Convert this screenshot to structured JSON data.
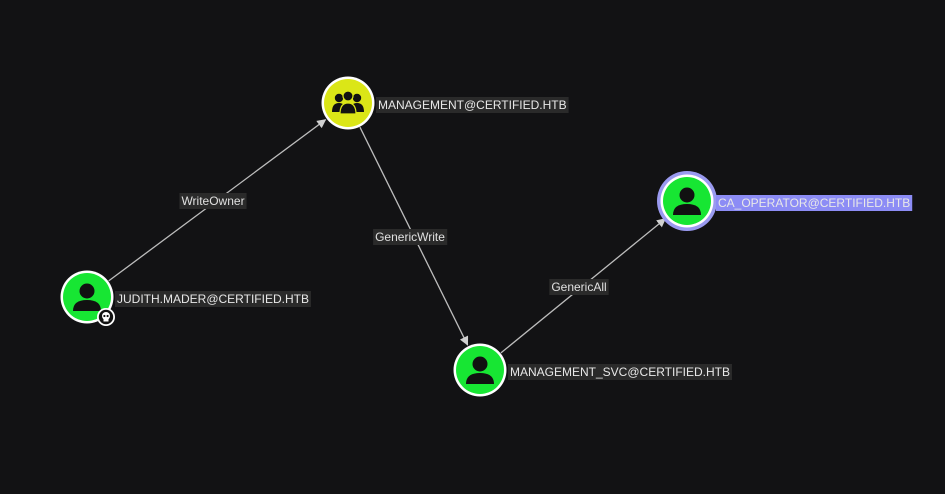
{
  "graph": {
    "background": "#121214",
    "colors": {
      "user_node": "#17e633",
      "group_node": "#dbe617",
      "edge": "#bdbdbd",
      "label_bg": "#2a2a2a",
      "selected_label_bg": "#8c8cf5",
      "selected_ring": "#9a9af0"
    },
    "nodes": [
      {
        "id": "judith",
        "label": "JUDITH.MADER@CERTIFIED.HTB",
        "kind": "user",
        "icon": "user-icon",
        "owned": true,
        "owned_icon": "skull-icon"
      },
      {
        "id": "management",
        "label": "MANAGEMENT@CERTIFIED.HTB",
        "kind": "group",
        "icon": "group-icon"
      },
      {
        "id": "management_svc",
        "label": "MANAGEMENT_SVC@CERTIFIED.HTB",
        "kind": "user",
        "icon": "user-icon"
      },
      {
        "id": "ca_operator",
        "label": "CA_OPERATOR@CERTIFIED.HTB",
        "kind": "user",
        "icon": "user-icon",
        "selected": true
      }
    ],
    "edges": [
      {
        "from": "judith",
        "to": "management",
        "label": "WriteOwner"
      },
      {
        "from": "management",
        "to": "management_svc",
        "label": "GenericWrite"
      },
      {
        "from": "management_svc",
        "to": "ca_operator",
        "label": "GenericAll"
      }
    ]
  }
}
